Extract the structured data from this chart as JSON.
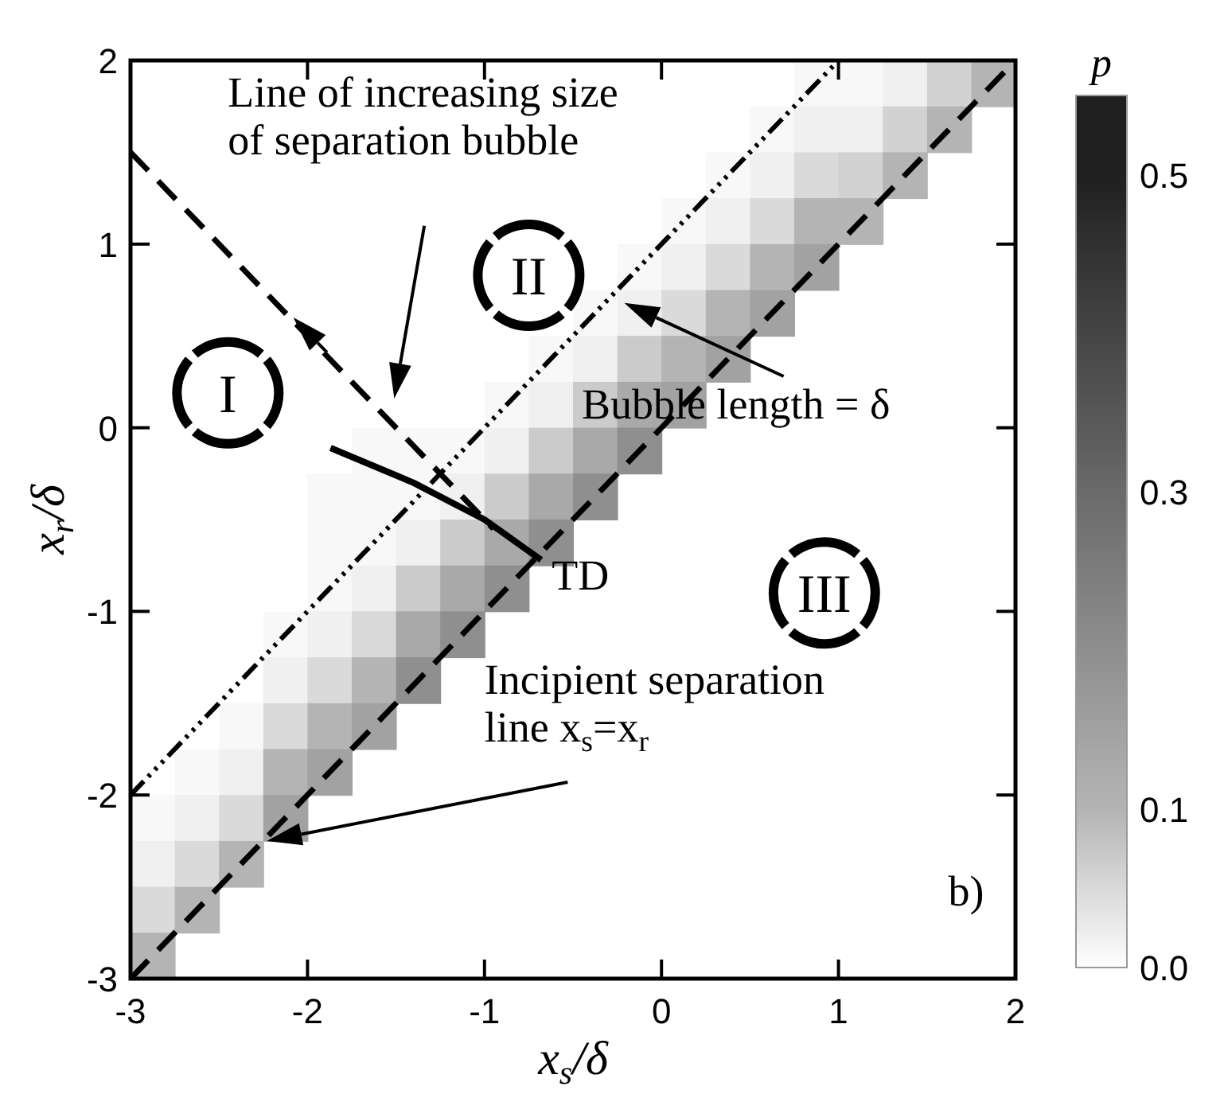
{
  "chart_data": {
    "type": "heatmap",
    "xlabel": "x$_{s}$/δ",
    "ylabel": "x$_{r}$/δ",
    "clabel": "p",
    "xlim": [
      -3,
      2
    ],
    "ylim": [
      -3,
      2
    ],
    "xticks": [
      -3,
      -2,
      -1,
      0,
      1,
      2
    ],
    "yticks": [
      -3,
      -2,
      -1,
      0,
      1,
      2
    ],
    "clim": [
      0,
      0.55
    ],
    "cticks": [
      {
        "value": 0,
        "label": "0.0"
      },
      {
        "value": 0.1,
        "label": "0.1"
      },
      {
        "value": 0.3,
        "label": "0.3"
      },
      {
        "value": 0.5,
        "label": "0.5"
      }
    ],
    "cells": [
      [
        0,
        0,
        0,
        0,
        0,
        0,
        0,
        0,
        0,
        0,
        0,
        0,
        0,
        0,
        0,
        0.01,
        0.01,
        0.02,
        0.06,
        0.1
      ],
      [
        0,
        0,
        0,
        0,
        0,
        0,
        0,
        0,
        0,
        0,
        0,
        0,
        0,
        0,
        0.01,
        0.02,
        0.02,
        0.06,
        0.1,
        null
      ],
      [
        0,
        0,
        0,
        0,
        0,
        0,
        0,
        0,
        0,
        0,
        0,
        0,
        0,
        0.01,
        0.02,
        0.05,
        0.06,
        0.1,
        null,
        null
      ],
      [
        0,
        0,
        0,
        0,
        0,
        0,
        0,
        0,
        0,
        0,
        0,
        0,
        0.01,
        0.02,
        0.05,
        0.1,
        0.1,
        null,
        null,
        null
      ],
      [
        0,
        0,
        0,
        0,
        0,
        0,
        0,
        0,
        0,
        0,
        0,
        0.01,
        0.02,
        0.05,
        0.1,
        0.15,
        null,
        null,
        null,
        null
      ],
      [
        0,
        0,
        0,
        0,
        0,
        0,
        0,
        0,
        0,
        0,
        0.01,
        0.02,
        0.05,
        0.1,
        0.15,
        null,
        null,
        null,
        null,
        null
      ],
      [
        0,
        0,
        0,
        0,
        0,
        0,
        0,
        0,
        0,
        0.01,
        0.02,
        0.07,
        0.1,
        0.15,
        null,
        null,
        null,
        null,
        null,
        null
      ],
      [
        0,
        0,
        0,
        0,
        0,
        0,
        0,
        0,
        0.01,
        0.02,
        0.07,
        0.13,
        0.15,
        null,
        null,
        null,
        null,
        null,
        null,
        null
      ],
      [
        0,
        0,
        0,
        0,
        0,
        0.01,
        0.01,
        0.01,
        0.02,
        0.07,
        0.13,
        0.2,
        null,
        null,
        null,
        null,
        null,
        null,
        null,
        null
      ],
      [
        0,
        0,
        0,
        0,
        0.01,
        0.01,
        0.01,
        0.02,
        0.07,
        0.13,
        0.2,
        null,
        null,
        null,
        null,
        null,
        null,
        null,
        null,
        null
      ],
      [
        0,
        0,
        0,
        0,
        0.01,
        0.01,
        0.02,
        0.07,
        0.13,
        0.2,
        null,
        null,
        null,
        null,
        null,
        null,
        null,
        null,
        null,
        null
      ],
      [
        0,
        0,
        0,
        0,
        0.01,
        0.02,
        0.07,
        0.13,
        0.2,
        null,
        null,
        null,
        null,
        null,
        null,
        null,
        null,
        null,
        null,
        null
      ],
      [
        0,
        0,
        0,
        0.01,
        0.02,
        0.05,
        0.13,
        0.2,
        null,
        null,
        null,
        null,
        null,
        null,
        null,
        null,
        null,
        null,
        null,
        null
      ],
      [
        0,
        0,
        0,
        0.02,
        0.05,
        0.1,
        0.2,
        null,
        null,
        null,
        null,
        null,
        null,
        null,
        null,
        null,
        null,
        null,
        null,
        null
      ],
      [
        0,
        0,
        0.01,
        0.05,
        0.1,
        0.15,
        null,
        null,
        null,
        null,
        null,
        null,
        null,
        null,
        null,
        null,
        null,
        null,
        null,
        null
      ],
      [
        0,
        0.01,
        0.02,
        0.1,
        0.15,
        null,
        null,
        null,
        null,
        null,
        null,
        null,
        null,
        null,
        null,
        null,
        null,
        null,
        null,
        null
      ],
      [
        0.01,
        0.02,
        0.05,
        0.15,
        null,
        null,
        null,
        null,
        null,
        null,
        null,
        null,
        null,
        null,
        null,
        null,
        null,
        null,
        null,
        null
      ],
      [
        0.02,
        0.05,
        0.1,
        null,
        null,
        null,
        null,
        null,
        null,
        null,
        null,
        null,
        null,
        null,
        null,
        null,
        null,
        null,
        null,
        null
      ],
      [
        0.05,
        0.1,
        null,
        null,
        null,
        null,
        null,
        null,
        null,
        null,
        null,
        null,
        null,
        null,
        null,
        null,
        null,
        null,
        null,
        null
      ],
      [
        0.1,
        null,
        null,
        null,
        null,
        null,
        null,
        null,
        null,
        null,
        null,
        null,
        null,
        null,
        null,
        null,
        null,
        null,
        null,
        null
      ]
    ],
    "series": [
      {
        "type": "line",
        "color": "#000000",
        "line_style": "dashed",
        "x": [
          -3,
          2
        ],
        "values": [
          -3,
          2
        ]
      },
      {
        "type": "line",
        "color": "#000000",
        "line_style": "dotted",
        "x": [
          -3,
          1
        ],
        "values": [
          -2,
          2
        ]
      },
      {
        "type": "line",
        "color": "#000000",
        "line_style": "dashed",
        "x": [
          -3,
          -0.95
        ],
        "values": [
          1.5,
          -0.55
        ]
      },
      {
        "type": "line",
        "color": "#000000",
        "line_style": "solid",
        "x": [
          -1.87,
          -1.4,
          -1.0,
          -0.68
        ],
        "values": [
          -0.11,
          -0.3,
          -0.5,
          -0.72
        ]
      }
    ],
    "annotations": [
      "Line of increasing size of separation bubble",
      "Bubble length = δ",
      "TD",
      "Incipient separation line x$_{s}$=x$_{r}$",
      "I",
      "II",
      "III",
      "b)"
    ]
  }
}
